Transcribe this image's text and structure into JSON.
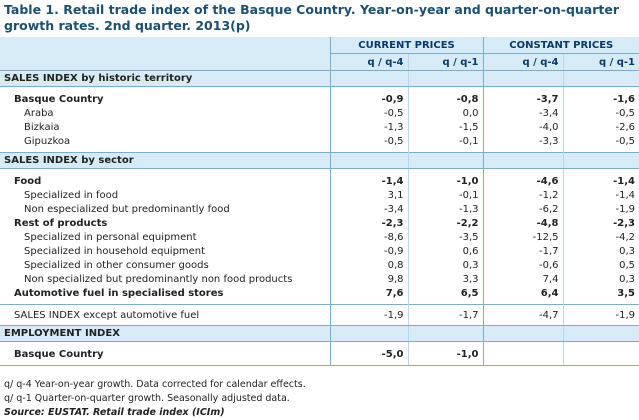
{
  "title": "Table 1. Retail trade index of the Basque Country. Year-on-year and quarter-on-quarter growth rates. 2nd quarter. 2013(p)",
  "table": {
    "groups": [
      "CURRENT PRICES",
      "CONSTANT PRICES"
    ],
    "subheaders": [
      "q / q-4",
      "q / q-1",
      "q / q-4",
      "q / q-1"
    ],
    "sections": [
      {
        "heading": "SALES INDEX by historic territory",
        "rows": [
          {
            "label": "Basque Country",
            "level": 1,
            "bold": true,
            "values": [
              "-0,9",
              "-0,8",
              "-3,7",
              "-1,6"
            ]
          },
          {
            "label": "Araba",
            "level": 2,
            "values": [
              "-0,5",
              "0,0",
              "-3,4",
              "-0,5"
            ]
          },
          {
            "label": "Bizkaia",
            "level": 2,
            "values": [
              "-1,3",
              "-1,5",
              "-4,0",
              "-2,6"
            ]
          },
          {
            "label": "Gipuzkoa",
            "level": 2,
            "values": [
              "-0,5",
              "-0,1",
              "-3,3",
              "-0,5"
            ]
          }
        ]
      },
      {
        "heading": "SALES INDEX by sector",
        "rows": [
          {
            "label": "Food",
            "level": 1,
            "bold": true,
            "values": [
              "-1,4",
              "-1,0",
              "-4,6",
              "-1,4"
            ]
          },
          {
            "label": "Specialized in food",
            "level": 2,
            "values": [
              "3,1",
              "-0,1",
              "-1,2",
              "-1,4"
            ]
          },
          {
            "label": "Non especialized but predominantly food",
            "level": 2,
            "values": [
              "-3,4",
              "-1,3",
              "-6,2",
              "-1,9"
            ]
          },
          {
            "label": "Rest of products",
            "level": 1,
            "bold": true,
            "values": [
              "-2,3",
              "-2,2",
              "-4,8",
              "-2,3"
            ]
          },
          {
            "label": "Specialized in personal equipment",
            "level": 2,
            "values": [
              "-8,6",
              "-3,5",
              "-12,5",
              "-4,2"
            ]
          },
          {
            "label": "Specialized in household equipment",
            "level": 2,
            "values": [
              "-0,9",
              "0,6",
              "-1,7",
              "0,3"
            ]
          },
          {
            "label": "Specialized in other consumer goods",
            "level": 2,
            "values": [
              "0,8",
              "0,3",
              "-0,6",
              "0,5"
            ]
          },
          {
            "label": "Non specialized but predominantly non food products",
            "level": 2,
            "values": [
              "9,8",
              "3,3",
              "7,4",
              "0,3"
            ]
          },
          {
            "label": "Automotive fuel in specialised stores",
            "level": 1,
            "bold": true,
            "values": [
              "7,6",
              "6,5",
              "6,4",
              "3,5"
            ]
          }
        ]
      },
      {
        "rows": [
          {
            "label": "SALES INDEX except automotive fuel",
            "level": 1,
            "values": [
              "-1,9",
              "-1,7",
              "-4,7",
              "-1,9"
            ]
          }
        ]
      },
      {
        "heading": "EMPLOYMENT INDEX",
        "rows": [
          {
            "label": "Basque Country",
            "level": 1,
            "bold": true,
            "values": [
              "-5,0",
              "-1,0",
              null,
              null
            ]
          }
        ]
      }
    ]
  },
  "notes": [
    "q/ q-4 Year-on-year growth. Data corrected for calendar effects.",
    "q/ q-1 Quarter-on-quarter growth. Seasonally adjusted data."
  ],
  "source": "Source: EUSTAT. Retail trade index (ICIm)"
}
